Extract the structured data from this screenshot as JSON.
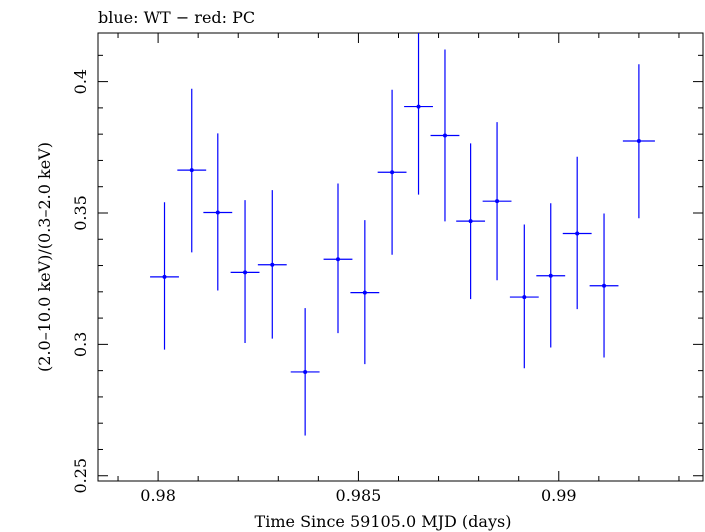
{
  "chart_data": {
    "type": "scatter",
    "title": "blue: WT − red: PC",
    "xlabel": "Time Since 59105.0 MJD (days)",
    "ylabel": "(2.0–10.0 keV)/(0.3–2.0 keV)",
    "xlim": [
      0.9785,
      0.9936
    ],
    "ylim": [
      0.248,
      0.4185
    ],
    "x_ticks": [
      {
        "value": 0.98,
        "label": "0.98"
      },
      {
        "value": 0.985,
        "label": "0.985"
      },
      {
        "value": 0.99,
        "label": "0.99"
      }
    ],
    "y_ticks": [
      {
        "value": 0.25,
        "label": "0.25"
      },
      {
        "value": 0.3,
        "label": "0.3"
      },
      {
        "value": 0.35,
        "label": "0.35"
      },
      {
        "value": 0.4,
        "label": "0.4"
      }
    ],
    "series": [
      {
        "color": "#0000ff",
        "points": [
          {
            "x": 0.98016,
            "y": 0.3257,
            "xerr": 0.00036,
            "ylo": 0.298,
            "yhi": 0.3541
          },
          {
            "x": 0.98084,
            "y": 0.3663,
            "xerr": 0.00036,
            "ylo": 0.335,
            "yhi": 0.3973
          },
          {
            "x": 0.98149,
            "y": 0.3502,
            "xerr": 0.00036,
            "ylo": 0.3205,
            "yhi": 0.3803
          },
          {
            "x": 0.98217,
            "y": 0.3274,
            "xerr": 0.00036,
            "ylo": 0.3005,
            "yhi": 0.3549
          },
          {
            "x": 0.98285,
            "y": 0.3303,
            "xerr": 0.00036,
            "ylo": 0.3022,
            "yhi": 0.3587
          },
          {
            "x": 0.98367,
            "y": 0.2895,
            "xerr": 0.00036,
            "ylo": 0.2653,
            "yhi": 0.3138
          },
          {
            "x": 0.98449,
            "y": 0.3324,
            "xerr": 0.00036,
            "ylo": 0.3043,
            "yhi": 0.3612
          },
          {
            "x": 0.98516,
            "y": 0.3197,
            "xerr": 0.00036,
            "ylo": 0.2925,
            "yhi": 0.3473
          },
          {
            "x": 0.98584,
            "y": 0.3655,
            "xerr": 0.00036,
            "ylo": 0.3341,
            "yhi": 0.3969
          },
          {
            "x": 0.9865,
            "y": 0.3905,
            "xerr": 0.00036,
            "ylo": 0.357,
            "yhi": 0.424
          },
          {
            "x": 0.98716,
            "y": 0.3795,
            "xerr": 0.00036,
            "ylo": 0.3468,
            "yhi": 0.4122
          },
          {
            "x": 0.9878,
            "y": 0.3469,
            "xerr": 0.00036,
            "ylo": 0.3172,
            "yhi": 0.3765
          },
          {
            "x": 0.98846,
            "y": 0.3545,
            "xerr": 0.00036,
            "ylo": 0.3244,
            "yhi": 0.3846
          },
          {
            "x": 0.98914,
            "y": 0.318,
            "xerr": 0.00036,
            "ylo": 0.2909,
            "yhi": 0.3456
          },
          {
            "x": 0.9898,
            "y": 0.3261,
            "xerr": 0.00036,
            "ylo": 0.2988,
            "yhi": 0.3537
          },
          {
            "x": 0.99046,
            "y": 0.3422,
            "xerr": 0.00036,
            "ylo": 0.3134,
            "yhi": 0.3714
          },
          {
            "x": 0.99113,
            "y": 0.3223,
            "xerr": 0.00036,
            "ylo": 0.295,
            "yhi": 0.3498
          },
          {
            "x": 0.992,
            "y": 0.3774,
            "xerr": 0.0004,
            "ylo": 0.348,
            "yhi": 0.4066
          }
        ]
      }
    ]
  }
}
